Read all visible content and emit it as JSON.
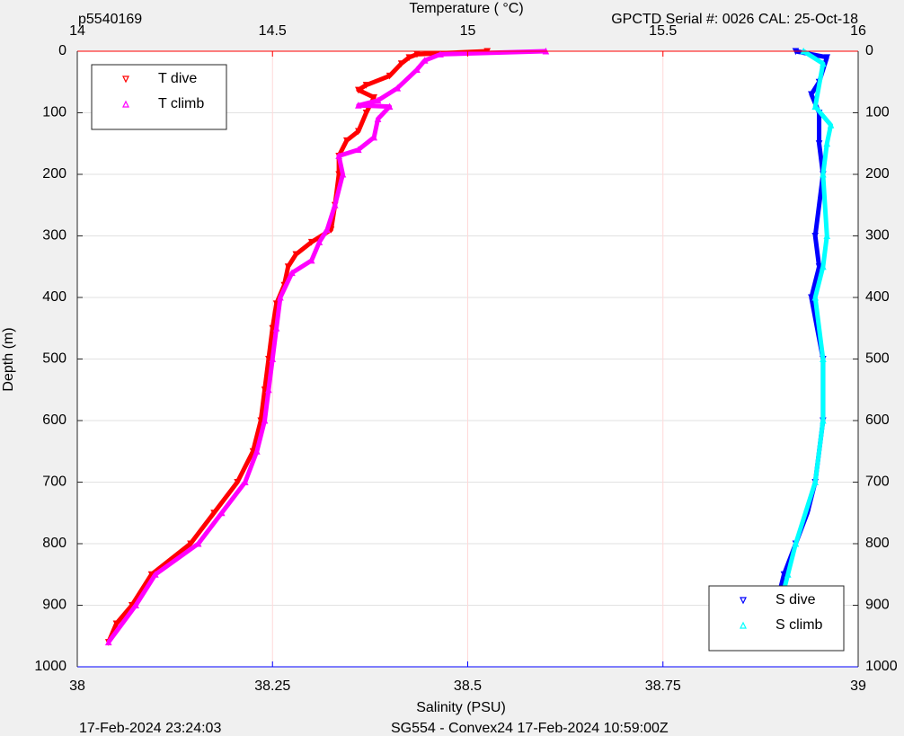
{
  "chart_data": {
    "type": "profile",
    "title_left": "p5540169",
    "title_right": "GPCTD Serial #: 0026 CAL: 25-Oct-18",
    "x2_label": "Temperature (    °C)",
    "x_label": "Salinity (PSU)",
    "y_label": "Depth (m)",
    "footer_left": "17-Feb-2024 23:24:03",
    "footer_right": "SG554 - Convex24 17-Feb-2024 10:59:00Z",
    "xlim": [
      38,
      39
    ],
    "xticks": [
      38,
      38.25,
      38.5,
      38.75,
      39
    ],
    "x2lim": [
      14,
      16
    ],
    "x2ticks": [
      14,
      14.5,
      15,
      15.5,
      16
    ],
    "ylim": [
      0,
      1000
    ],
    "yticks": [
      0,
      100,
      200,
      300,
      400,
      500,
      600,
      700,
      800,
      900,
      1000
    ],
    "y_reversed": true,
    "grid": true,
    "x_color": "#0000ff",
    "x2_color": "#ff0000",
    "legends": [
      {
        "axis": "x2",
        "loc": "upper left"
      },
      {
        "axis": "x",
        "loc": "lower right"
      }
    ],
    "series": [
      {
        "name": "T dive",
        "color": "#ff0000",
        "marker": "down",
        "axis": "x2",
        "x": [
          15.05,
          14.87,
          14.85,
          14.83,
          14.8,
          14.74,
          14.72,
          14.76,
          14.74,
          14.72,
          14.69,
          14.67,
          14.67,
          14.66,
          14.65,
          14.6,
          14.56,
          14.54,
          14.53,
          14.51,
          14.5,
          14.49,
          14.48,
          14.47,
          14.45,
          14.41,
          14.35,
          14.29,
          14.19,
          14.14,
          14.1,
          14.08
        ],
        "y": [
          0,
          5,
          10,
          20,
          40,
          55,
          63,
          75,
          100,
          130,
          145,
          170,
          200,
          250,
          290,
          310,
          330,
          350,
          380,
          410,
          450,
          500,
          550,
          600,
          650,
          700,
          750,
          800,
          850,
          900,
          930,
          960
        ]
      },
      {
        "name": "T climb",
        "color": "#ff00ff",
        "marker": "up",
        "axis": "x2",
        "x": [
          15.2,
          14.93,
          14.89,
          14.87,
          14.82,
          14.77,
          14.72,
          14.8,
          14.77,
          14.76,
          14.72,
          14.67,
          14.68,
          14.66,
          14.64,
          14.62,
          14.6,
          14.55,
          14.52,
          14.51,
          14.5,
          14.49,
          14.48,
          14.46,
          14.43,
          14.37,
          14.31,
          14.2,
          14.15,
          14.08
        ],
        "y": [
          0,
          5,
          15,
          30,
          60,
          80,
          88,
          90,
          110,
          140,
          160,
          170,
          200,
          250,
          290,
          310,
          340,
          360,
          400,
          450,
          500,
          550,
          600,
          650,
          700,
          750,
          800,
          850,
          900,
          960
        ]
      },
      {
        "name": "S dive",
        "color": "#0000ff",
        "marker": "down",
        "axis": "x",
        "x": [
          38.92,
          38.96,
          38.95,
          38.94,
          38.95,
          38.95,
          38.955,
          38.945,
          38.95,
          38.94,
          38.955,
          38.955,
          38.945,
          38.935,
          38.92,
          38.905,
          38.895,
          38.89
        ],
        "y": [
          0,
          10,
          50,
          70,
          100,
          150,
          200,
          300,
          350,
          400,
          500,
          600,
          700,
          750,
          800,
          850,
          900,
          960
        ]
      },
      {
        "name": "S climb",
        "color": "#00ffff",
        "marker": "up",
        "axis": "x",
        "x": [
          38.93,
          38.955,
          38.945,
          38.965,
          38.96,
          38.955,
          38.96,
          38.955,
          38.945,
          38.955,
          38.955,
          38.945,
          38.92,
          38.91,
          38.9,
          38.89
        ],
        "y": [
          0,
          20,
          90,
          120,
          150,
          200,
          300,
          350,
          400,
          500,
          600,
          700,
          800,
          850,
          900,
          960
        ]
      }
    ]
  }
}
